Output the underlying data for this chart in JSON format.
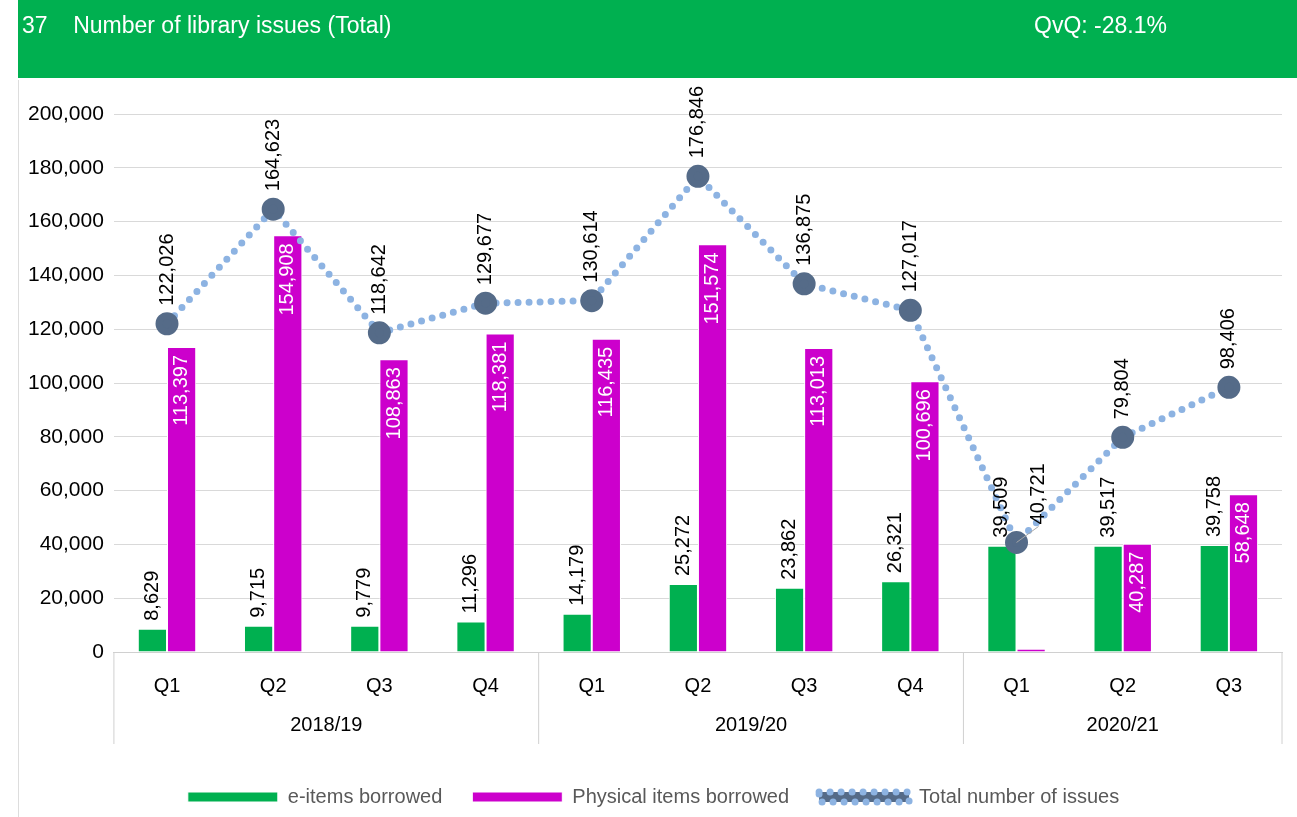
{
  "chart_data": {
    "type": "bar",
    "title": "37    Number of library issues (Total)",
    "subtitle": "QvQ: -28.1%",
    "categories": [
      "Q1",
      "Q2",
      "Q3",
      "Q4",
      "Q1",
      "Q2",
      "Q3",
      "Q4",
      "Q1",
      "Q2",
      "Q3"
    ],
    "annotations": [
      "2018/19",
      "2019/20",
      "2020/21"
    ],
    "series": [
      {
        "name": "e-items borrowed",
        "color": "#00b050",
        "values": [
          8629,
          9715,
          9779,
          11296,
          14179,
          25272,
          23862,
          26321,
          39509,
          39517,
          39758
        ],
        "value_labels": [
          "8,629",
          "9,715",
          "9,779",
          "11,296",
          "14,179",
          "25,272",
          "23,862",
          "26,321",
          "39,509",
          "39,517",
          "39,758"
        ]
      },
      {
        "name": "Physical items borrowed",
        "color": "#cc00cc",
        "values": [
          113397,
          154908,
          108863,
          118381,
          116435,
          151574,
          113013,
          100696,
          1212,
          40287,
          58648
        ],
        "value_labels": [
          "113,397",
          "154,908",
          "108,863",
          "118,381",
          "116,435",
          "151,574",
          "113,013",
          "100,696",
          null,
          "40,287",
          "58,648"
        ]
      },
      {
        "name": "Total number of issues",
        "type": "line",
        "color": "#8db3e2",
        "values": [
          122026,
          164623,
          118642,
          129677,
          130614,
          176846,
          136875,
          127017,
          40721,
          79804,
          98406
        ],
        "value_labels": [
          "122,026",
          "164,623",
          "118,642",
          "129,677",
          "130,614",
          "176,846",
          "136,875",
          "127,017",
          "40,721",
          "79,804",
          "98,406"
        ]
      }
    ],
    "ylim": [
      0,
      200000
    ],
    "yticks": [
      {
        "value": 0,
        "label": "0"
      },
      {
        "value": 20000,
        "label": "20,000"
      },
      {
        "value": 40000,
        "label": "40,000"
      },
      {
        "value": 60000,
        "label": "60,000"
      },
      {
        "value": 80000,
        "label": "80,000"
      },
      {
        "value": 100000,
        "label": "100,000"
      },
      {
        "value": 120000,
        "label": "120,000"
      },
      {
        "value": 140000,
        "label": "140,000"
      },
      {
        "value": 160000,
        "label": "160,000"
      },
      {
        "value": 180000,
        "label": "180,000"
      },
      {
        "value": 200000,
        "label": "200,000"
      }
    ],
    "grid": "y",
    "legend": "bottom",
    "marker": "circle",
    "line_style": "dotted"
  }
}
